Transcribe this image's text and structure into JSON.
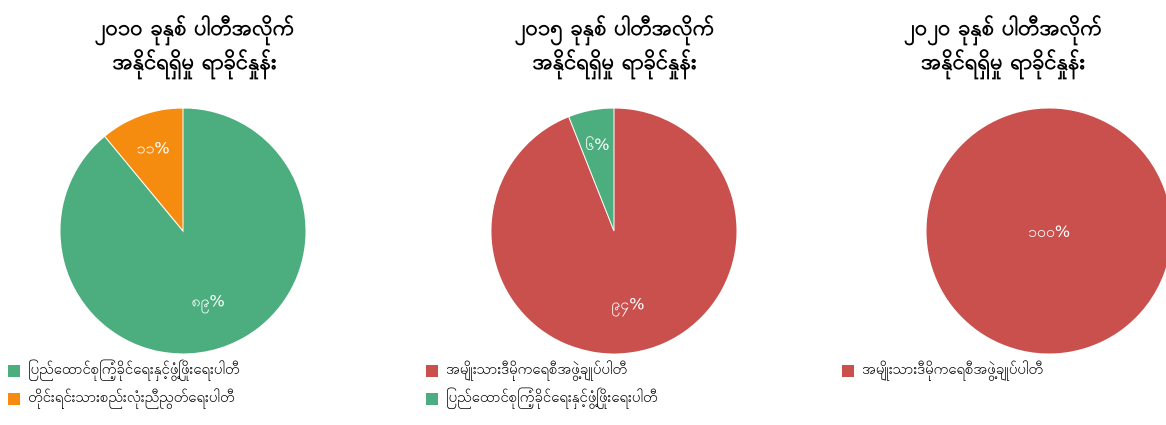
{
  "chart_data": [
    {
      "type": "pie",
      "title_lines": [
        "၂၀၁၀ ခုနှစ် ပါတီအလိုက်",
        "အနိုင်ရရှိမှု ရာခိုင်နှုန်း"
      ],
      "slices": [
        {
          "label": "ပြည်ထောင်စုကြံ့ခိုင်ရေးနှင့်ဖွံ့ဖြိုးရေးပါတီ",
          "value": 89,
          "data_label": "၈၉%",
          "color": "#4cae7e"
        },
        {
          "label": "တိုင်းရင်းသားစည်းလုံးညီညွတ်ရေးပါတီ",
          "value": 11,
          "data_label": "၁၁%",
          "color": "#f58c0f"
        }
      ]
    },
    {
      "type": "pie",
      "title_lines": [
        "၂၀၁၅ ခုနှစ် ပါတီအလိုက်",
        "အနိုင်ရရှိမှု ရာခိုင်နှုန်း"
      ],
      "slices": [
        {
          "label": "အမျိုးသားဒီမိုကရေစီအဖွဲ့ချုပ်ပါတီ",
          "value": 94,
          "data_label": "၉၄%",
          "color": "#c9504c"
        },
        {
          "label": "ပြည်ထောင်စုကြံ့ခိုင်ရေးနှင့်ဖွံ့ဖြိုးရေးပါတီ",
          "value": 6,
          "data_label": "၆%",
          "color": "#4cae7e"
        }
      ]
    },
    {
      "type": "pie",
      "title_lines": [
        "၂၀၂၀ ခုနှစ် ပါတီအလိုက်",
        "အနိုင်ရရှိမှု ရာခိုင်နှုန်း"
      ],
      "slices": [
        {
          "label": "အမျိုးသားဒီမိုကရေစီအဖွဲ့ချုပ်ပါတီ",
          "value": 100,
          "data_label": "၁၀၀%",
          "color": "#c9504c"
        }
      ]
    }
  ]
}
